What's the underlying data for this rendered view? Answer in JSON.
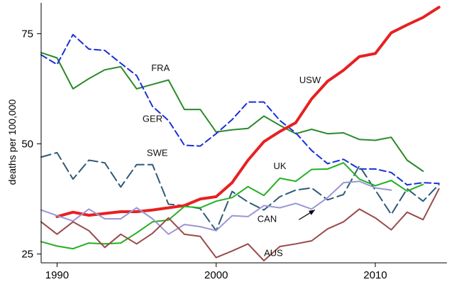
{
  "chart_data": {
    "type": "line",
    "title": "",
    "xlabel": "",
    "ylabel": "deaths per 100,000",
    "xlim": [
      1989,
      2014.5
    ],
    "ylim": [
      23,
      82
    ],
    "xticks": [
      1990,
      2000,
      2010
    ],
    "yticks": [
      25,
      50,
      75
    ],
    "grid": false,
    "series": [
      {
        "name": "FRA",
        "color": "#2a8a2a",
        "dash": "solid",
        "width": 2,
        "x": [
          1989,
          1990,
          1991,
          1992,
          1993,
          1994,
          1995,
          1996,
          1997,
          1998,
          1999,
          2000,
          2001,
          2002,
          2003,
          2004,
          2005,
          2006,
          2007,
          2008,
          2009,
          2010,
          2011,
          2012,
          2013
        ],
        "y": [
          70.7,
          69.5,
          62.5,
          64.8,
          66.8,
          67.5,
          62.5,
          63.5,
          64.5,
          57.8,
          57.8,
          52.7,
          53.2,
          53.5,
          56.3,
          54.2,
          52.3,
          53.3,
          52.3,
          52.5,
          51,
          50.8,
          51.5,
          46.3,
          43.8
        ]
      },
      {
        "name": "GER",
        "color": "#1a2fd8",
        "dash": "9,5",
        "width": 2,
        "x": [
          1989,
          1990,
          1991,
          1992,
          1993,
          1994,
          1995,
          1996,
          1997,
          1998,
          1999,
          2000,
          2001,
          2002,
          2003,
          2004,
          2005,
          2006,
          2007,
          2008,
          2009,
          2010,
          2011,
          2012,
          2013,
          2014
        ],
        "y": [
          70.2,
          68,
          74.8,
          71.5,
          71.2,
          68.3,
          65.5,
          58.5,
          55.3,
          49.7,
          49.5,
          52.3,
          55.5,
          59.5,
          59.5,
          55.3,
          52.5,
          48.5,
          45.5,
          46.5,
          44.3,
          44.3,
          43.5,
          40.7,
          41.2,
          41
        ]
      },
      {
        "name": "SWE",
        "color": "#2e5a78",
        "dash": "14,6",
        "width": 2,
        "x": [
          1989,
          1990,
          1991,
          1992,
          1993,
          1994,
          1995,
          1996,
          1997,
          1998,
          1999,
          2000,
          2001,
          2002,
          2003,
          2004,
          2005,
          2006,
          2007,
          2008,
          2009,
          2010,
          2011,
          2012,
          2013,
          2014
        ],
        "y": [
          47,
          48,
          42,
          46.3,
          45.7,
          40.2,
          45.3,
          45.3,
          36.3,
          36,
          35.3,
          30.3,
          39.2,
          36.8,
          35,
          38,
          39.5,
          40,
          37.3,
          38.5,
          45,
          39.5,
          34,
          39.8,
          37,
          40.8
        ]
      },
      {
        "name": "USW",
        "color": "#e82020",
        "dash": "solid",
        "width": 4,
        "x": [
          1990,
          1991,
          1992,
          1993,
          1994,
          1995,
          1996,
          1997,
          1998,
          1999,
          2000,
          2001,
          2002,
          2003,
          2004,
          2005,
          2006,
          2007,
          2008,
          2009,
          2010,
          2011,
          2012,
          2013,
          2014
        ],
        "y": [
          33.5,
          34.5,
          33.8,
          34.2,
          34.6,
          34.6,
          35,
          35.5,
          36,
          37.5,
          38,
          41.2,
          46.3,
          50.5,
          52.8,
          54.8,
          60.2,
          64.2,
          66.7,
          69.8,
          70.5,
          75.2,
          77,
          78.7,
          81
        ]
      },
      {
        "name": "UK",
        "color": "#22b022",
        "dash": "solid",
        "width": 2,
        "x": [
          1989,
          1990,
          1991,
          1992,
          1993,
          1994,
          1995,
          1996,
          1997,
          1998,
          1999,
          2000,
          2001,
          2002,
          2003,
          2004,
          2005,
          2006,
          2007,
          2008,
          2009,
          2010,
          2011,
          2012,
          2013
        ],
        "y": [
          27.8,
          26.8,
          26.2,
          27.5,
          27.3,
          27.5,
          29.8,
          32.3,
          32.7,
          35.8,
          35.5,
          37,
          37.8,
          40.3,
          38.3,
          42.2,
          41.5,
          44.2,
          44.3,
          45.7,
          42,
          40.5,
          41.7,
          39.3,
          40.8
        ]
      },
      {
        "name": "CAN",
        "color": "#9a96d6",
        "dash": "solid",
        "width": 2,
        "x": [
          1989,
          1990,
          1991,
          1992,
          1993,
          1994,
          1995,
          1996,
          1997,
          1998,
          1999,
          2000,
          2001,
          2002,
          2003,
          2004,
          2005,
          2006,
          2007,
          2008,
          2009,
          2010,
          2011
        ],
        "y": [
          35,
          33.7,
          32.5,
          35.2,
          33,
          33,
          35.5,
          33,
          29.5,
          31.7,
          31.2,
          30.3,
          33.7,
          33.5,
          36,
          35.5,
          36.5,
          35.2,
          37.8,
          41.2,
          41.5,
          40,
          39.5
        ]
      },
      {
        "name": "AUS",
        "color": "#9a4a4a",
        "dash": "solid",
        "width": 2,
        "x": [
          1989,
          1990,
          1991,
          1992,
          1993,
          1994,
          1995,
          1996,
          1997,
          1998,
          1999,
          2000,
          2001,
          2002,
          2003,
          2004,
          2005,
          2006,
          2007,
          2008,
          2009,
          2010,
          2011,
          2012,
          2013,
          2014
        ],
        "y": [
          32.3,
          29.5,
          32.3,
          30.3,
          26.5,
          29.5,
          27.3,
          29.7,
          33.2,
          29.5,
          29,
          24.2,
          25.7,
          27.3,
          23.5,
          26.7,
          27.3,
          28,
          30.7,
          32.3,
          35.2,
          33.2,
          30.5,
          34.5,
          32.8,
          39.8
        ]
      }
    ],
    "annotations": [
      {
        "text": "FRA",
        "at": [
          1996.5,
          66.5
        ]
      },
      {
        "text": "GER",
        "at": [
          1996.0,
          55.0
        ]
      },
      {
        "text": "SWE",
        "at": [
          1996.3,
          47.3
        ]
      },
      {
        "text": "USW",
        "at": [
          2005.9,
          63.8
        ]
      },
      {
        "text": "UK",
        "at": [
          2004.0,
          44.3
        ]
      },
      {
        "text": "CAN",
        "at": [
          2003.2,
          32.3
        ]
      },
      {
        "text": "AUS",
        "at": [
          2003.6,
          24.5
        ]
      }
    ],
    "arrows": [
      {
        "for": "CAN",
        "from": [
          2005.2,
          32.8
        ],
        "to": [
          2006.2,
          35.0
        ]
      }
    ]
  }
}
